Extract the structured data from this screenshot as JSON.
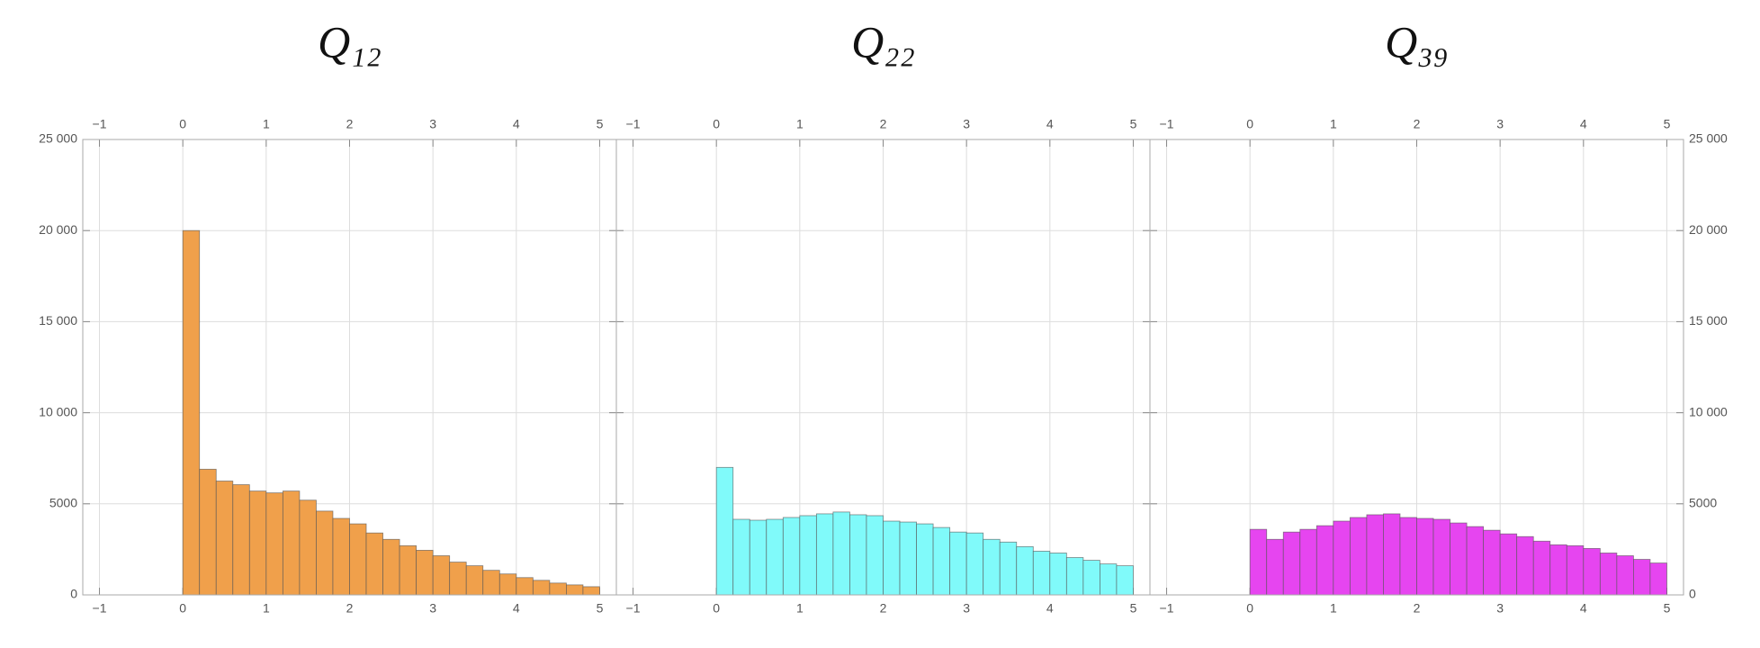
{
  "chart_data": [
    {
      "type": "histogram",
      "title": "Q₁₂",
      "color": "#f0a04b",
      "bins": [
        0,
        0.2,
        0.4,
        0.6,
        0.8,
        1,
        1.2,
        1.4,
        1.6,
        1.8,
        2,
        2.2,
        2.4,
        2.6,
        2.8,
        3,
        3.2,
        3.4,
        3.6,
        3.8,
        4,
        4.2,
        4.4,
        4.6,
        4.8,
        5
      ],
      "values": [
        20000,
        6900,
        6250,
        6050,
        5700,
        5600,
        5700,
        5200,
        4600,
        4200,
        3900,
        3400,
        3050,
        2700,
        2450,
        2150,
        1800,
        1600,
        1350,
        1150,
        950,
        800,
        650,
        550,
        450
      ],
      "xlim": [
        -1.2,
        5.2
      ],
      "ylim": [
        0,
        25000
      ],
      "xticks": [
        {
          "value": -1,
          "label": "−1"
        },
        0,
        1,
        2,
        3,
        4,
        5
      ],
      "yticks": [
        0,
        5000,
        {
          "value": 10000,
          "label": "10 000"
        },
        {
          "value": 15000,
          "label": "15 000"
        },
        {
          "value": 20000,
          "label": "20 000"
        },
        {
          "value": 25000,
          "label": "25 000"
        }
      ],
      "grid": true
    },
    {
      "type": "histogram",
      "title": "Q₂₂",
      "color": "#80fafa",
      "bins": [
        0,
        0.2,
        0.4,
        0.6,
        0.8,
        1,
        1.2,
        1.4,
        1.6,
        1.8,
        2,
        2.2,
        2.4,
        2.6,
        2.8,
        3,
        3.2,
        3.4,
        3.6,
        3.8,
        4,
        4.2,
        4.4,
        4.6,
        4.8,
        5
      ],
      "values": [
        7000,
        4150,
        4100,
        4150,
        4250,
        4350,
        4450,
        4550,
        4400,
        4350,
        4050,
        4000,
        3900,
        3700,
        3450,
        3400,
        3050,
        2900,
        2650,
        2400,
        2300,
        2050,
        1900,
        1700,
        1600
      ],
      "xlim": [
        -1.2,
        5.2
      ],
      "ylim": [
        0,
        25000
      ],
      "xticks": [
        {
          "value": -1,
          "label": "−1"
        },
        0,
        1,
        2,
        3,
        4,
        5
      ],
      "yticks": [
        0,
        5000,
        {
          "value": 10000,
          "label": "10 000"
        },
        {
          "value": 15000,
          "label": "15 000"
        },
        {
          "value": 20000,
          "label": "20 000"
        },
        {
          "value": 25000,
          "label": "25 000"
        }
      ],
      "grid": true
    },
    {
      "type": "histogram",
      "title": "Q₃₉",
      "color": "#e645f0",
      "bins": [
        0,
        0.2,
        0.4,
        0.6,
        0.8,
        1,
        1.2,
        1.4,
        1.6,
        1.8,
        2,
        2.2,
        2.4,
        2.6,
        2.8,
        3,
        3.2,
        3.4,
        3.6,
        3.8,
        4,
        4.2,
        4.4,
        4.6,
        4.8,
        5
      ],
      "values": [
        3600,
        3050,
        3450,
        3600,
        3800,
        4050,
        4250,
        4400,
        4450,
        4250,
        4200,
        4150,
        3950,
        3750,
        3550,
        3350,
        3200,
        2950,
        2750,
        2700,
        2550,
        2300,
        2150,
        1950,
        1750
      ],
      "xlim": [
        -1.2,
        5.2
      ],
      "ylim": [
        0,
        25000
      ],
      "xticks": [
        {
          "value": -1,
          "label": "−1"
        },
        0,
        1,
        2,
        3,
        4,
        5
      ],
      "yticks": [
        0,
        5000,
        {
          "value": 10000,
          "label": "10 000"
        },
        {
          "value": 15000,
          "label": "15 000"
        },
        {
          "value": 20000,
          "label": "20 000"
        },
        {
          "value": 25000,
          "label": "25 000"
        }
      ],
      "grid": true
    }
  ]
}
